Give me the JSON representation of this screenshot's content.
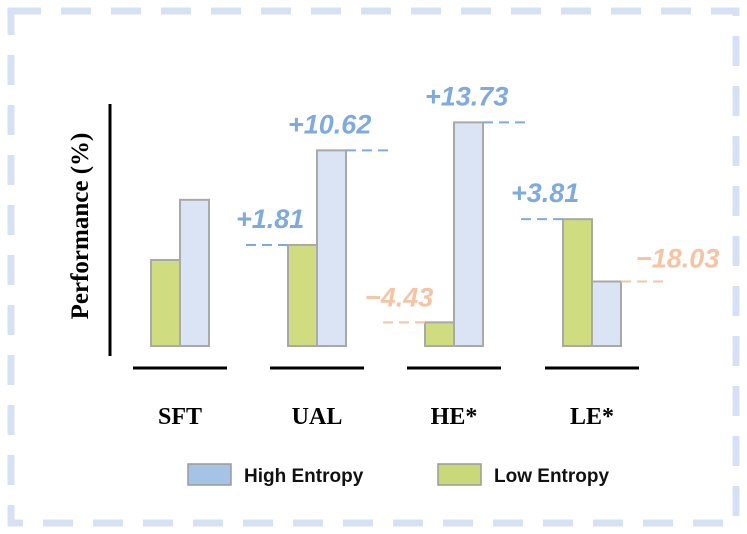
{
  "chart_data": {
    "type": "bar",
    "ylabel": "Performance (%)",
    "categories": [
      "SFT",
      "UAL",
      "HE*",
      "LE*"
    ],
    "series": [
      {
        "name": "Low Entropy",
        "color": "#cfdc7f",
        "values": [
          40,
          47,
          11,
          59
        ]
      },
      {
        "name": "High Entropy",
        "color": "#dbe4f4",
        "values": [
          68,
          91,
          104,
          30
        ]
      }
    ],
    "baseline": "SFT",
    "annotations": [
      {
        "category": "UAL",
        "series": "Low Entropy",
        "text": "+1.81",
        "color": "#7eaadf"
      },
      {
        "category": "UAL",
        "series": "High Entropy",
        "text": "+10.62",
        "color": "#7eaadf"
      },
      {
        "category": "HE*",
        "series": "Low Entropy",
        "text": "−4.43",
        "color": "#f6c4a4"
      },
      {
        "category": "HE*",
        "series": "High Entropy",
        "text": "+13.73",
        "color": "#7eaadf"
      },
      {
        "category": "LE*",
        "series": "Low Entropy",
        "text": "+3.81",
        "color": "#7eaadf"
      },
      {
        "category": "LE*",
        "series": "High Entropy",
        "text": "−18.03",
        "color": "#f6c4a4"
      }
    ],
    "legend": {
      "position": "bottom",
      "items": [
        {
          "label": "High Entropy",
          "color": "#a6c3e6"
        },
        {
          "label": "Low Entropy",
          "color": "#c9d97a"
        }
      ]
    },
    "grid": false,
    "frame_color": "#d7e1f5"
  }
}
